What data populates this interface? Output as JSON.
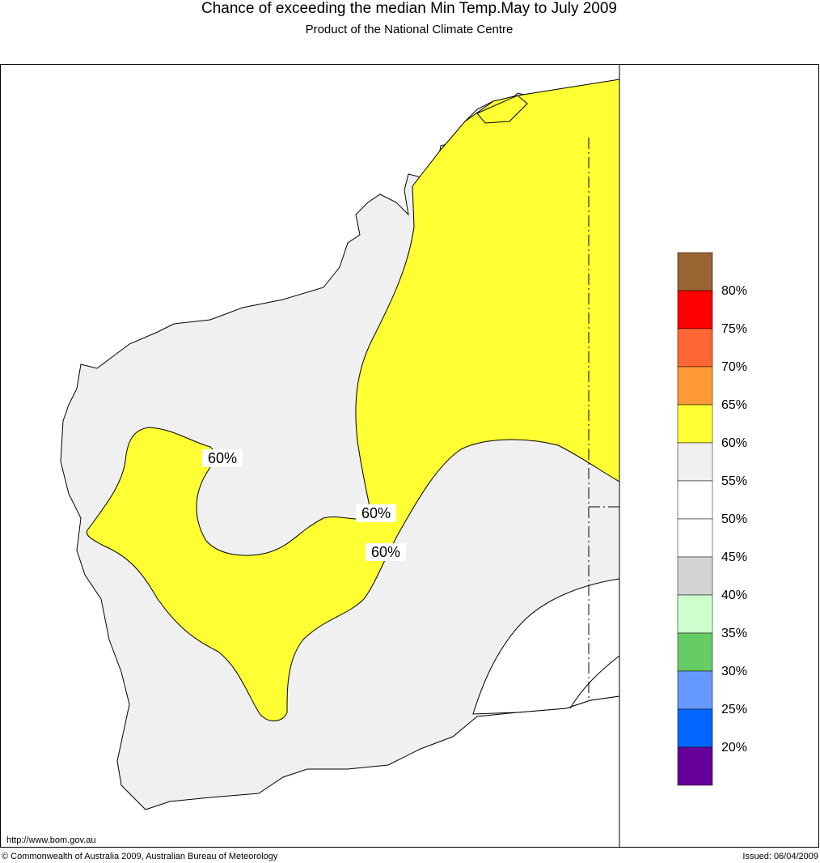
{
  "title": "Chance of exceeding the median Min Temp.May to July 2009",
  "subtitle": "Product of the National Climate Centre",
  "contour_labels": [
    "60%",
    "60%",
    "60%"
  ],
  "legend": {
    "colors": [
      "#996633",
      "#ff0000",
      "#ff6633",
      "#ff9933",
      "#ffff33",
      "#f0f0f0",
      "#ffffff",
      "#ffffff",
      "#d4d4d4",
      "#ccffcc",
      "#66cc66",
      "#6699ff",
      "#0066ff",
      "#660099"
    ],
    "labels": [
      "80%",
      "75%",
      "70%",
      "65%",
      "60%",
      "55%",
      "50%",
      "45%",
      "40%",
      "35%",
      "30%",
      "25%",
      "20%"
    ]
  },
  "footer": {
    "url": "http://www.bom.gov.au",
    "copyright": "© Commonwealth of Australia 2009, Australian Bureau of Meteorology",
    "issued": "Issued: 06/04/2009"
  }
}
